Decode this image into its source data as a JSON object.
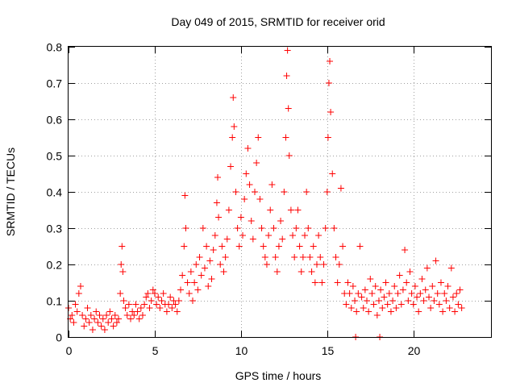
{
  "chart_data": {
    "type": "scatter",
    "title": "Day 049 of 2015, SRMTID for receiver orid",
    "xlabel": "GPS time / hours",
    "ylabel": "SRMTID / TECUs",
    "xlim": [
      0,
      24.5
    ],
    "ylim": [
      0,
      0.8
    ],
    "xticks": [
      0,
      5,
      10,
      15,
      20
    ],
    "yticks": [
      0,
      0.1,
      0.2,
      0.3,
      0.4,
      0.5,
      0.6,
      0.7,
      0.8
    ],
    "xtick_labels": [
      "0",
      "5",
      "10",
      "15",
      "20"
    ],
    "ytick_labels": [
      "0",
      "0.1",
      "0.2",
      "0.3",
      "0.4",
      "0.5",
      "0.6",
      "0.7",
      "0.8"
    ],
    "grid": true,
    "marker": "plus",
    "color": "#ff0000",
    "series": [
      {
        "name": "SRMTID",
        "points": [
          [
            0.0,
            0.08
          ],
          [
            0.1,
            0.05
          ],
          [
            0.2,
            0.06
          ],
          [
            0.3,
            0.04
          ],
          [
            0.4,
            0.09
          ],
          [
            0.5,
            0.07
          ],
          [
            0.6,
            0.12
          ],
          [
            0.7,
            0.14
          ],
          [
            0.8,
            0.06
          ],
          [
            0.9,
            0.03
          ],
          [
            1.0,
            0.05
          ],
          [
            1.1,
            0.08
          ],
          [
            1.2,
            0.04
          ],
          [
            1.3,
            0.06
          ],
          [
            1.4,
            0.02
          ],
          [
            1.5,
            0.05
          ],
          [
            1.6,
            0.07
          ],
          [
            1.7,
            0.04
          ],
          [
            1.8,
            0.06
          ],
          [
            1.9,
            0.03
          ],
          [
            2.0,
            0.05
          ],
          [
            2.1,
            0.02
          ],
          [
            2.2,
            0.06
          ],
          [
            2.3,
            0.04
          ],
          [
            2.4,
            0.07
          ],
          [
            2.5,
            0.05
          ],
          [
            2.6,
            0.03
          ],
          [
            2.7,
            0.06
          ],
          [
            2.8,
            0.04
          ],
          [
            2.9,
            0.05
          ],
          [
            3.0,
            0.12
          ],
          [
            3.05,
            0.2
          ],
          [
            3.1,
            0.25
          ],
          [
            3.15,
            0.18
          ],
          [
            3.2,
            0.1
          ],
          [
            3.3,
            0.08
          ],
          [
            3.4,
            0.06
          ],
          [
            3.5,
            0.09
          ],
          [
            3.6,
            0.05
          ],
          [
            3.7,
            0.07
          ],
          [
            3.8,
            0.06
          ],
          [
            3.9,
            0.09
          ],
          [
            4.0,
            0.07
          ],
          [
            4.1,
            0.05
          ],
          [
            4.2,
            0.08
          ],
          [
            4.3,
            0.06
          ],
          [
            4.4,
            0.09
          ],
          [
            4.5,
            0.11
          ],
          [
            4.6,
            0.12
          ],
          [
            4.7,
            0.08
          ],
          [
            4.8,
            0.1
          ],
          [
            4.9,
            0.13
          ],
          [
            5.0,
            0.12
          ],
          [
            5.1,
            0.09
          ],
          [
            5.2,
            0.11
          ],
          [
            5.3,
            0.08
          ],
          [
            5.4,
            0.1
          ],
          [
            5.5,
            0.12
          ],
          [
            5.6,
            0.09
          ],
          [
            5.7,
            0.07
          ],
          [
            5.8,
            0.09
          ],
          [
            5.9,
            0.11
          ],
          [
            6.0,
            0.08
          ],
          [
            6.1,
            0.1
          ],
          [
            6.2,
            0.09
          ],
          [
            6.3,
            0.07
          ],
          [
            6.4,
            0.1
          ],
          [
            6.5,
            0.13
          ],
          [
            6.6,
            0.17
          ],
          [
            6.7,
            0.25
          ],
          [
            6.75,
            0.39
          ],
          [
            6.8,
            0.3
          ],
          [
            6.9,
            0.15
          ],
          [
            7.0,
            0.12
          ],
          [
            7.1,
            0.18
          ],
          [
            7.2,
            0.1
          ],
          [
            7.3,
            0.15
          ],
          [
            7.4,
            0.2
          ],
          [
            7.5,
            0.13
          ],
          [
            7.6,
            0.22
          ],
          [
            7.7,
            0.17
          ],
          [
            7.8,
            0.3
          ],
          [
            7.9,
            0.19
          ],
          [
            8.0,
            0.25
          ],
          [
            8.1,
            0.14
          ],
          [
            8.2,
            0.21
          ],
          [
            8.3,
            0.16
          ],
          [
            8.4,
            0.24
          ],
          [
            8.5,
            0.28
          ],
          [
            8.6,
            0.37
          ],
          [
            8.65,
            0.44
          ],
          [
            8.7,
            0.33
          ],
          [
            8.8,
            0.2
          ],
          [
            8.9,
            0.25
          ],
          [
            9.0,
            0.18
          ],
          [
            9.1,
            0.22
          ],
          [
            9.2,
            0.27
          ],
          [
            9.3,
            0.35
          ],
          [
            9.4,
            0.47
          ],
          [
            9.5,
            0.55
          ],
          [
            9.55,
            0.66
          ],
          [
            9.6,
            0.58
          ],
          [
            9.7,
            0.4
          ],
          [
            9.8,
            0.3
          ],
          [
            9.9,
            0.25
          ],
          [
            10.0,
            0.33
          ],
          [
            10.1,
            0.28
          ],
          [
            10.2,
            0.38
          ],
          [
            10.3,
            0.45
          ],
          [
            10.4,
            0.52
          ],
          [
            10.5,
            0.42
          ],
          [
            10.6,
            0.32
          ],
          [
            10.7,
            0.27
          ],
          [
            10.8,
            0.4
          ],
          [
            10.9,
            0.48
          ],
          [
            11.0,
            0.55
          ],
          [
            11.1,
            0.38
          ],
          [
            11.2,
            0.3
          ],
          [
            11.3,
            0.25
          ],
          [
            11.4,
            0.22
          ],
          [
            11.5,
            0.2
          ],
          [
            11.6,
            0.28
          ],
          [
            11.7,
            0.35
          ],
          [
            11.8,
            0.42
          ],
          [
            11.9,
            0.3
          ],
          [
            12.0,
            0.22
          ],
          [
            12.1,
            0.18
          ],
          [
            12.2,
            0.25
          ],
          [
            12.3,
            0.32
          ],
          [
            12.4,
            0.27
          ],
          [
            12.5,
            0.4
          ],
          [
            12.6,
            0.55
          ],
          [
            12.65,
            0.72
          ],
          [
            12.7,
            0.79
          ],
          [
            12.75,
            0.63
          ],
          [
            12.8,
            0.5
          ],
          [
            12.9,
            0.35
          ],
          [
            13.0,
            0.28
          ],
          [
            13.1,
            0.22
          ],
          [
            13.2,
            0.3
          ],
          [
            13.3,
            0.35
          ],
          [
            13.4,
            0.25
          ],
          [
            13.5,
            0.18
          ],
          [
            13.6,
            0.22
          ],
          [
            13.7,
            0.28
          ],
          [
            13.8,
            0.4
          ],
          [
            13.9,
            0.3
          ],
          [
            14.0,
            0.22
          ],
          [
            14.1,
            0.18
          ],
          [
            14.2,
            0.25
          ],
          [
            14.3,
            0.15
          ],
          [
            14.4,
            0.2
          ],
          [
            14.5,
            0.28
          ],
          [
            14.6,
            0.22
          ],
          [
            14.7,
            0.15
          ],
          [
            14.8,
            0.2
          ],
          [
            14.9,
            0.3
          ],
          [
            15.0,
            0.4
          ],
          [
            15.05,
            0.55
          ],
          [
            15.1,
            0.7
          ],
          [
            15.15,
            0.76
          ],
          [
            15.2,
            0.62
          ],
          [
            15.3,
            0.45
          ],
          [
            15.4,
            0.3
          ],
          [
            15.5,
            0.22
          ],
          [
            15.6,
            0.15
          ],
          [
            15.7,
            0.2
          ],
          [
            15.8,
            0.41
          ],
          [
            15.9,
            0.25
          ],
          [
            16.0,
            0.12
          ],
          [
            16.1,
            0.09
          ],
          [
            16.2,
            0.15
          ],
          [
            16.3,
            0.12
          ],
          [
            16.4,
            0.08
          ],
          [
            16.5,
            0.14
          ],
          [
            16.6,
            0.1
          ],
          [
            16.7,
            0.07
          ],
          [
            16.8,
            0.12
          ],
          [
            16.9,
            0.25
          ],
          [
            17.0,
            0.11
          ],
          [
            17.1,
            0.08
          ],
          [
            17.2,
            0.13
          ],
          [
            17.3,
            0.1
          ],
          [
            17.4,
            0.07
          ],
          [
            17.5,
            0.16
          ],
          [
            17.6,
            0.12
          ],
          [
            17.7,
            0.09
          ],
          [
            17.8,
            0.14
          ],
          [
            17.9,
            0.06
          ],
          [
            18.0,
            0.1
          ],
          [
            18.1,
            0.13
          ],
          [
            18.2,
            0.08
          ],
          [
            18.3,
            0.11
          ],
          [
            18.4,
            0.15
          ],
          [
            18.5,
            0.09
          ],
          [
            18.6,
            0.12
          ],
          [
            18.7,
            0.07
          ],
          [
            18.8,
            0.1
          ],
          [
            18.9,
            0.14
          ],
          [
            19.0,
            0.08
          ],
          [
            19.1,
            0.12
          ],
          [
            19.2,
            0.17
          ],
          [
            19.3,
            0.09
          ],
          [
            19.4,
            0.13
          ],
          [
            19.5,
            0.24
          ],
          [
            19.6,
            0.15
          ],
          [
            19.7,
            0.1
          ],
          [
            19.8,
            0.18
          ],
          [
            19.9,
            0.12
          ],
          [
            20.0,
            0.09
          ],
          [
            20.1,
            0.14
          ],
          [
            20.2,
            0.11
          ],
          [
            20.3,
            0.07
          ],
          [
            20.4,
            0.12
          ],
          [
            20.5,
            0.16
          ],
          [
            20.6,
            0.1
          ],
          [
            20.7,
            0.13
          ],
          [
            20.8,
            0.19
          ],
          [
            20.9,
            0.11
          ],
          [
            21.0,
            0.08
          ],
          [
            21.1,
            0.14
          ],
          [
            21.2,
            0.1
          ],
          [
            21.3,
            0.21
          ],
          [
            21.4,
            0.12
          ],
          [
            21.5,
            0.09
          ],
          [
            21.6,
            0.15
          ],
          [
            21.7,
            0.07
          ],
          [
            21.8,
            0.12
          ],
          [
            21.9,
            0.1
          ],
          [
            22.0,
            0.14
          ],
          [
            22.1,
            0.08
          ],
          [
            22.2,
            0.19
          ],
          [
            22.3,
            0.11
          ],
          [
            22.4,
            0.07
          ],
          [
            22.5,
            0.12
          ],
          [
            22.6,
            0.09
          ],
          [
            22.7,
            0.13
          ],
          [
            22.8,
            0.08
          ],
          [
            16.65,
            0.0
          ],
          [
            18.05,
            0.0
          ]
        ]
      }
    ]
  }
}
